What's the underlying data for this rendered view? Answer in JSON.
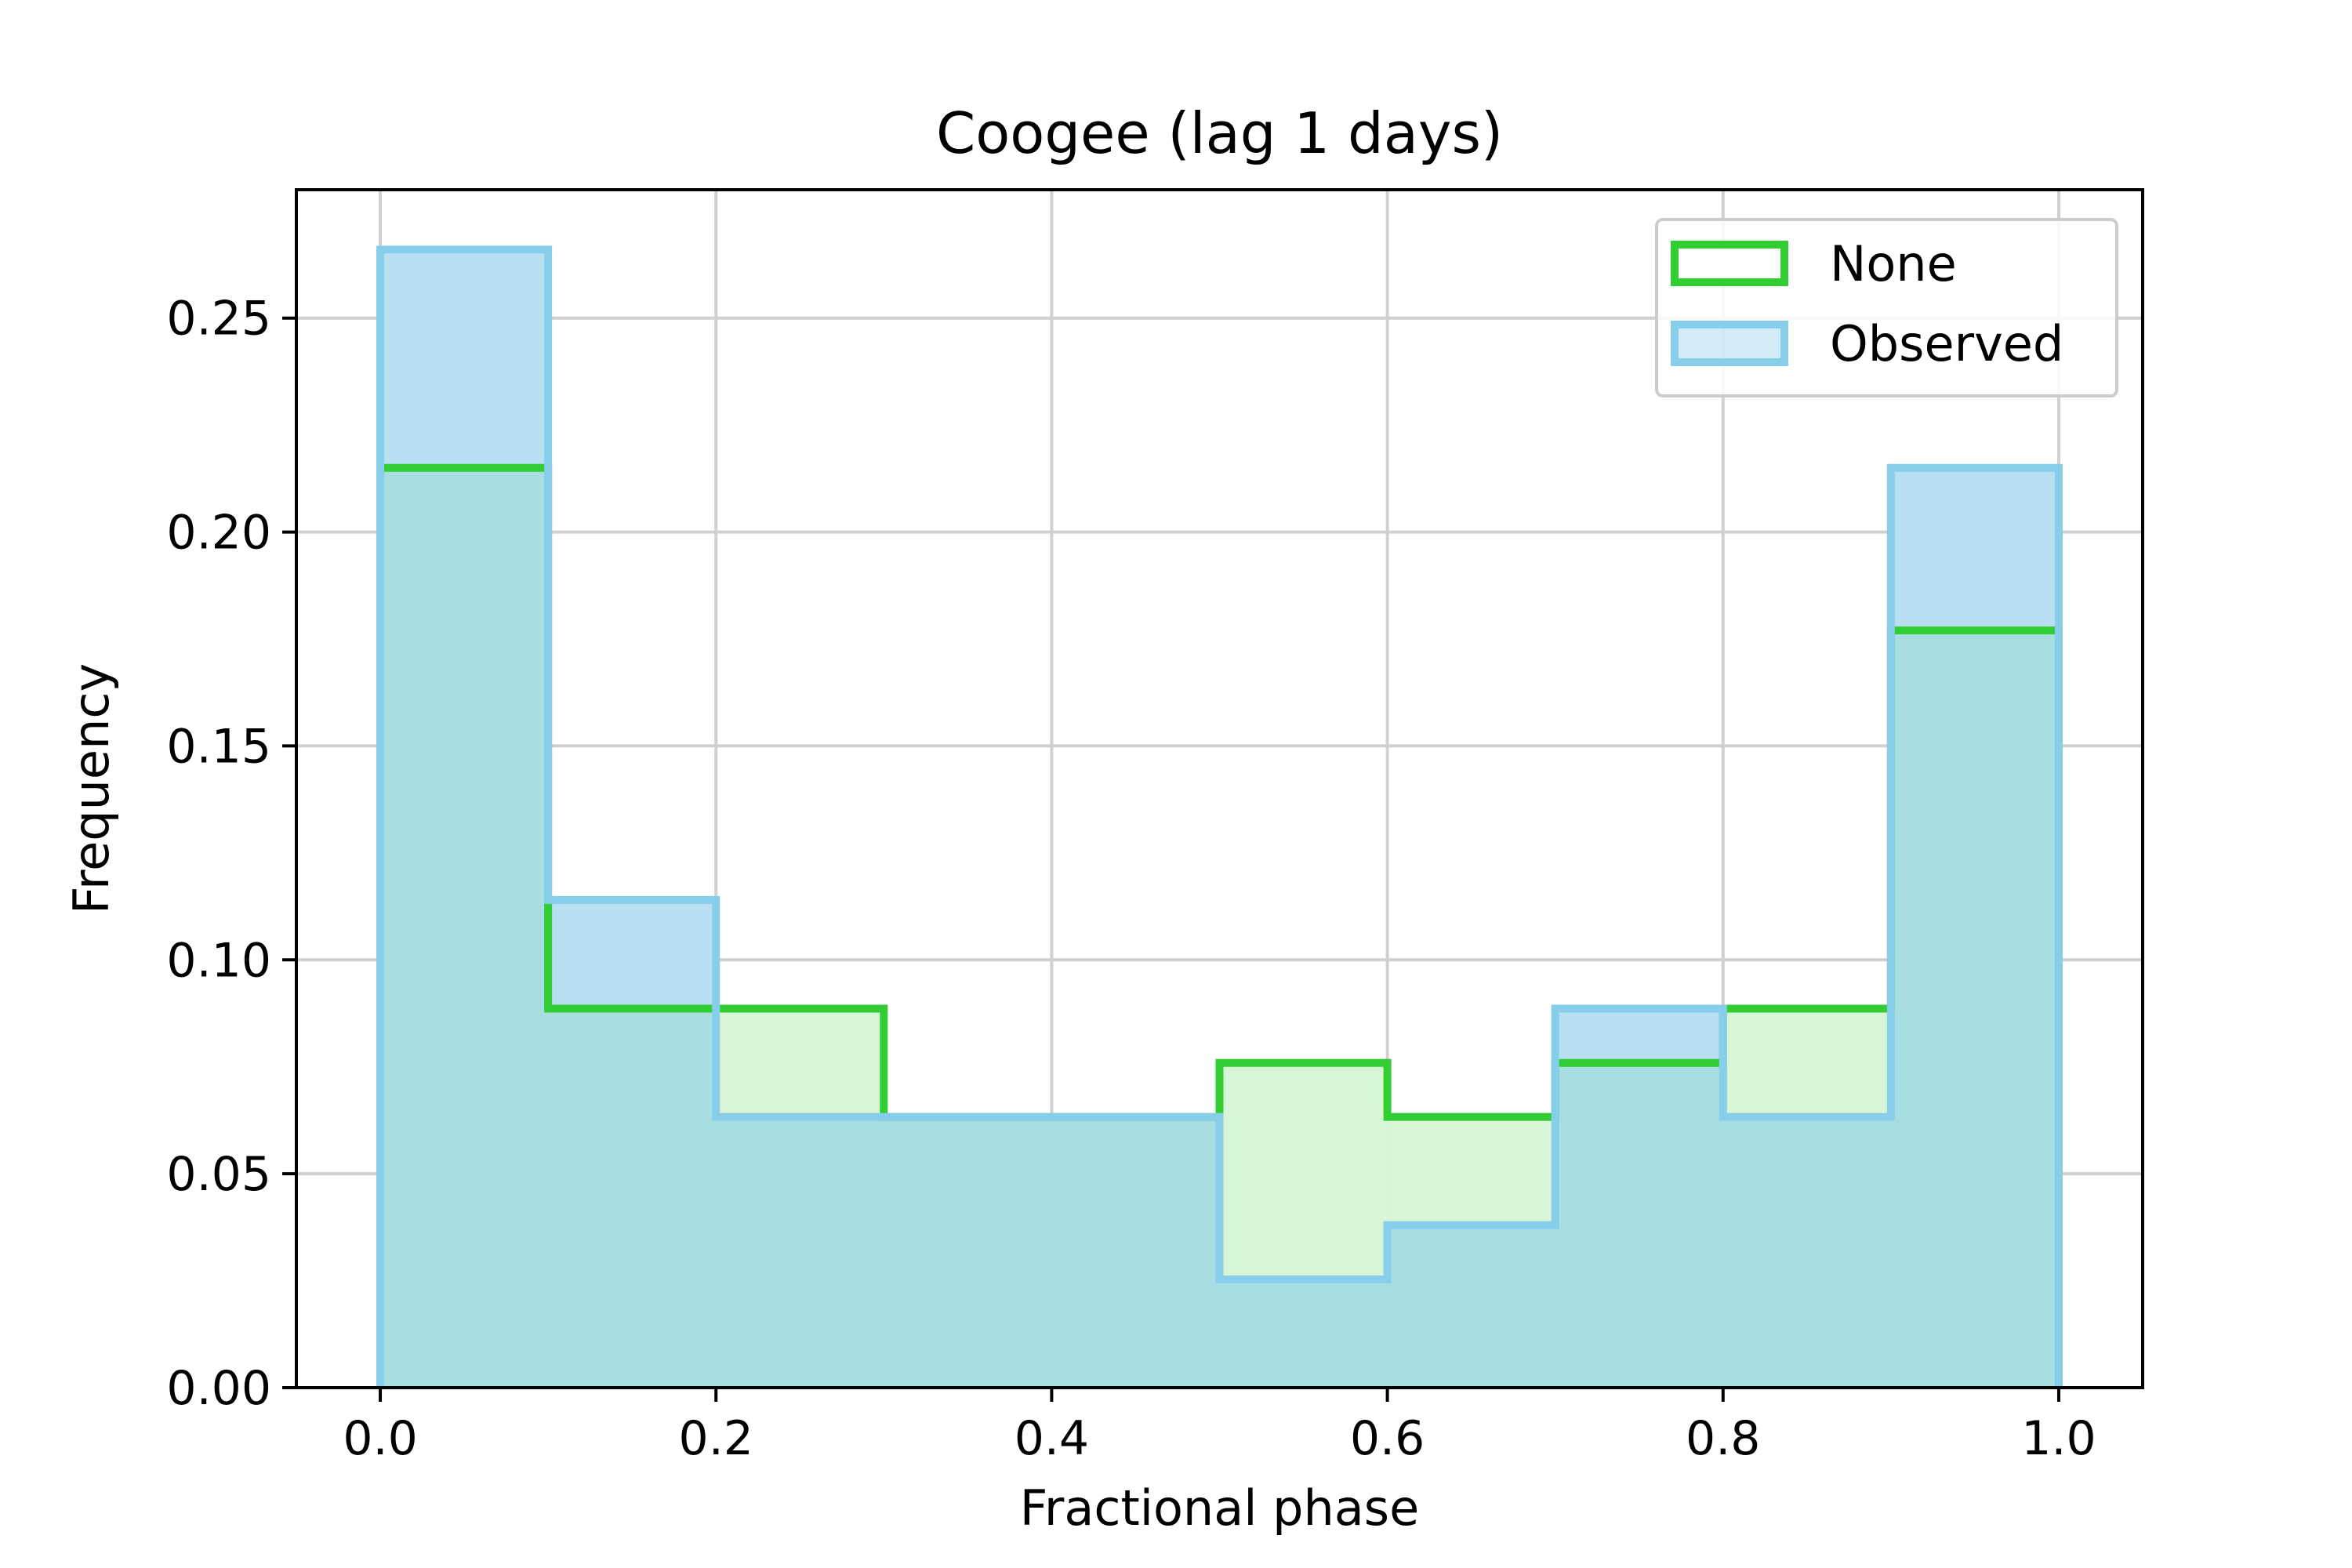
{
  "chart_data": {
    "type": "histogram",
    "title": "Coogee (lag 1 days)",
    "xlabel": "Fractional phase",
    "ylabel": "Frequency",
    "xlim": [
      -0.05,
      1.05
    ],
    "ylim": [
      0,
      0.28
    ],
    "xticks": [
      0.0,
      0.2,
      0.4,
      0.6,
      0.8,
      1.0
    ],
    "xtick_labels": [
      "0.0",
      "0.2",
      "0.4",
      "0.6",
      "0.8",
      "1.0"
    ],
    "yticks": [
      0.0,
      0.05,
      0.1,
      0.15,
      0.2,
      0.25
    ],
    "ytick_labels": [
      "0.00",
      "0.05",
      "0.10",
      "0.15",
      "0.20",
      "0.25"
    ],
    "grid": true,
    "legend_position": "top-right",
    "bin_edges": [
      0.0,
      0.1,
      0.2,
      0.3,
      0.4,
      0.5,
      0.6,
      0.7,
      0.8,
      0.9,
      1.0
    ],
    "series": [
      {
        "name": "None",
        "edge_color": "#32cd32",
        "fill_color": "#d8f5d6",
        "values": [
          0.215,
          0.0886,
          0.0886,
          0.0633,
          0.0633,
          0.0759,
          0.0633,
          0.0759,
          0.0886,
          0.177
        ]
      },
      {
        "name": "Observed",
        "edge_color": "#87ceeb",
        "fill_color": "#b8e0f2",
        "values": [
          0.266,
          0.114,
          0.0633,
          0.0633,
          0.0633,
          0.0253,
          0.038,
          0.0886,
          0.0633,
          0.215
        ]
      }
    ],
    "overlap_color": "#a8dde2"
  }
}
